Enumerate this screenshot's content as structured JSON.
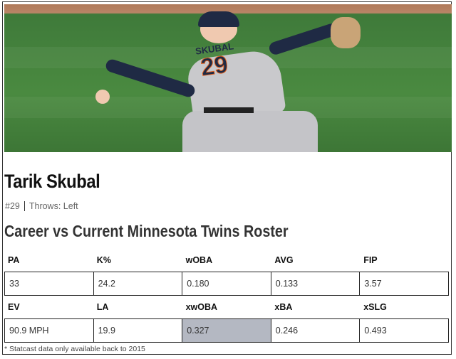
{
  "photo": {
    "jersey_name": "SKUBAL",
    "jersey_number": "29"
  },
  "player": {
    "name": "Tarik Skubal",
    "number": "#29",
    "throws": "Throws: Left"
  },
  "section_title": "Career vs Current Minnesota Twins Roster",
  "table": {
    "row1": {
      "headers": [
        "PA",
        "K%",
        "wOBA",
        "AVG",
        "FIP"
      ],
      "values": [
        "33",
        "24.2",
        "0.180",
        "0.133",
        "3.57"
      ]
    },
    "row2": {
      "headers": [
        "EV",
        "LA",
        "xwOBA",
        "xBA",
        "xSLG"
      ],
      "values": [
        "90.9 MPH",
        "19.9",
        "0.327",
        "0.246",
        "0.493"
      ],
      "highlighted_index": 2
    }
  },
  "highlight_color": "#b4b8c2",
  "footnote": "* Statcast data only available back to 2015"
}
